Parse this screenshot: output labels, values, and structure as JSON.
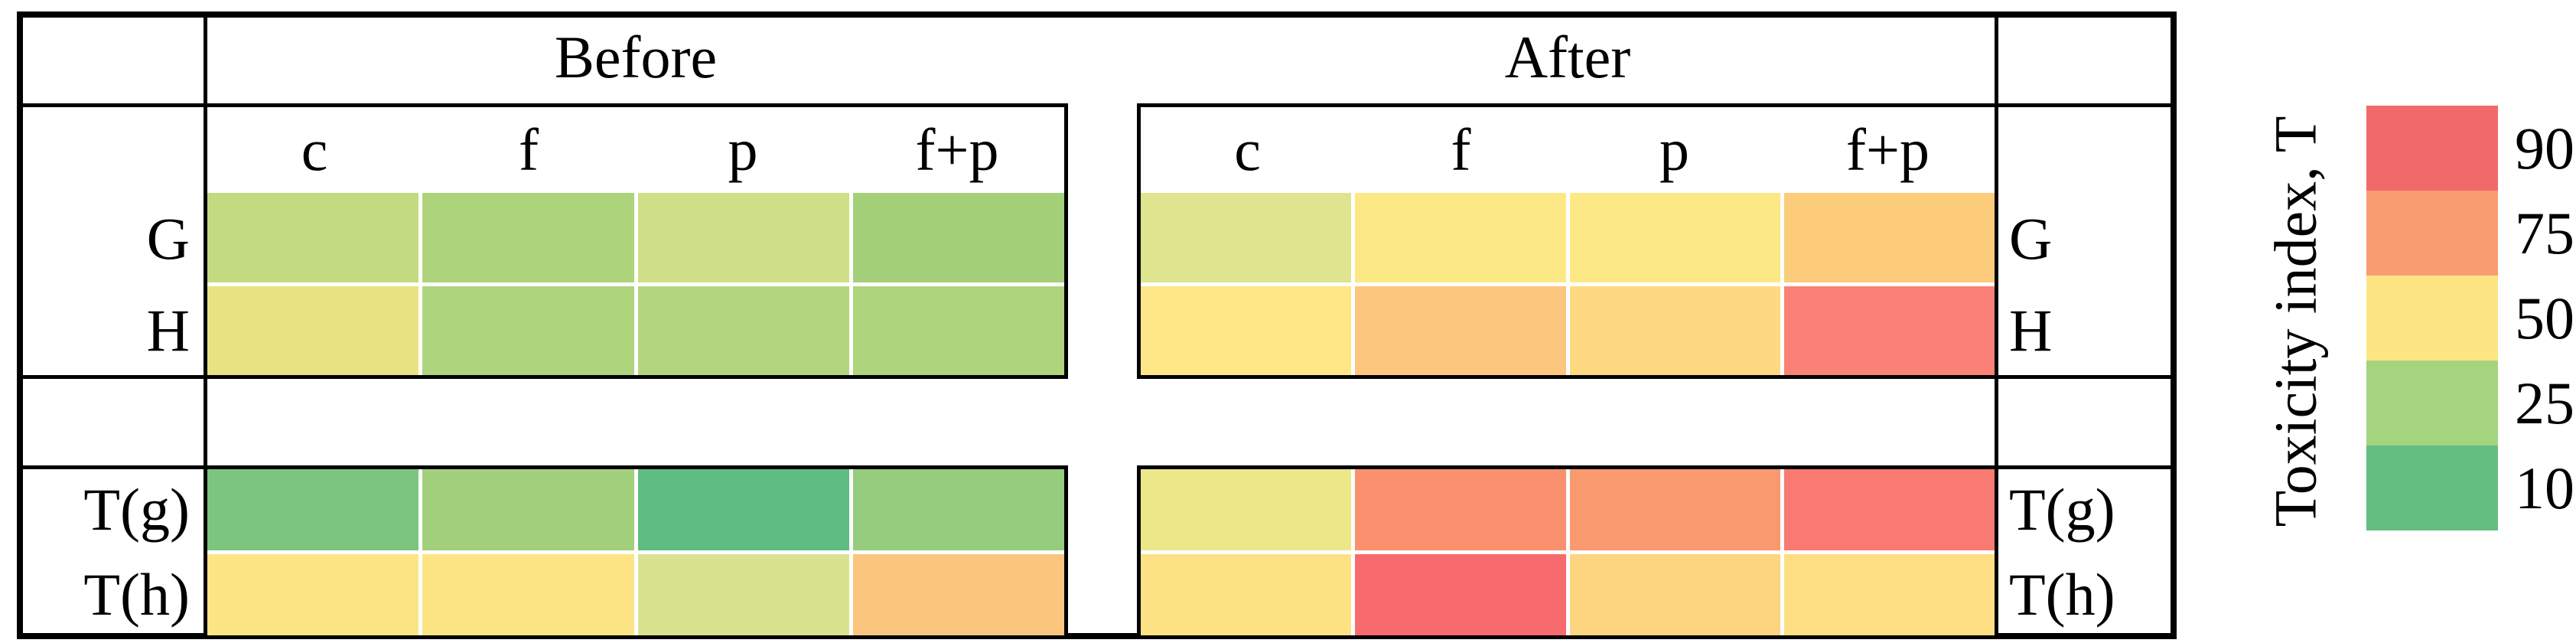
{
  "table": {
    "col_groups": [
      {
        "label": "Before"
      },
      {
        "label": "After"
      }
    ],
    "col_headers": [
      "c",
      "f",
      "p",
      "f+p"
    ],
    "row_labels": [
      "G",
      "H",
      "T(g)",
      "T(h)"
    ]
  },
  "legend": {
    "title": "Toxicity index, T",
    "entries": [
      {
        "value": "90",
        "color": "#f2696b"
      },
      {
        "value": "75",
        "color": "#f99d70"
      },
      {
        "value": "50",
        "color": "#fde584"
      },
      {
        "value": "25",
        "color": "#a5d47e"
      },
      {
        "value": "10",
        "color": "#62be81"
      }
    ]
  },
  "chart_data": {
    "type": "heatmap",
    "title": "",
    "col_groups": [
      "Before",
      "After"
    ],
    "columns": [
      "c",
      "f",
      "p",
      "f+p"
    ],
    "rows": [
      "G",
      "H",
      "T(g)",
      "T(h)"
    ],
    "legend_title": "Toxicity index, T",
    "legend_values": [
      90,
      75,
      50,
      25,
      10
    ],
    "legend_colors": [
      "#f2696b",
      "#f99d70",
      "#fde584",
      "#a5d47e",
      "#62be81"
    ],
    "value_note": "values estimated from cell colors against the legend scale",
    "blocks": [
      {
        "group": "Before",
        "section": "upper",
        "rows": [
          {
            "label": "G",
            "values": [
              33,
              27,
              36,
              25
            ],
            "colors": [
              "#c3db80",
              "#aed47b",
              "#cfdf87",
              "#a5d07a"
            ]
          },
          {
            "label": "H",
            "values": [
              43,
              27,
              27,
              27
            ],
            "colors": [
              "#e9e384",
              "#aed47e",
              "#b2d680",
              "#aed47e"
            ]
          }
        ]
      },
      {
        "group": "Before",
        "section": "lower",
        "rows": [
          {
            "label": "T(g)",
            "values": [
              17,
              25,
              10,
              22
            ],
            "colors": [
              "#7bc57f",
              "#a2d07c",
              "#60bd82",
              "#96cc7d"
            ]
          },
          {
            "label": "T(h)",
            "values": [
              50,
              50,
              40,
              61
            ],
            "colors": [
              "#fde485",
              "#fde485",
              "#d9e28e",
              "#fcc57e"
            ]
          }
        ]
      },
      {
        "group": "After",
        "section": "upper",
        "rows": [
          {
            "label": "G",
            "values": [
              41,
              50,
              50,
              59
            ],
            "colors": [
              "#dfe48e",
              "#fde886",
              "#fde886",
              "#fccc7b"
            ]
          },
          {
            "label": "H",
            "values": [
              50,
              61,
              55,
              82
            ],
            "colors": [
              "#fde786",
              "#fcc67e",
              "#fdd981",
              "#f98175"
            ]
          }
        ]
      },
      {
        "group": "After",
        "section": "lower",
        "rows": [
          {
            "label": "T(g)",
            "values": [
              45,
              77,
              76,
              84
            ],
            "colors": [
              "#ece788",
              "#f9916f",
              "#f9996f",
              "#f87a70"
            ]
          },
          {
            "label": "T(h)",
            "values": [
              51,
              89,
              57,
              53
            ],
            "colors": [
              "#fde283",
              "#f76b6e",
              "#fdd47f",
              "#fdde82"
            ]
          }
        ]
      }
    ]
  }
}
